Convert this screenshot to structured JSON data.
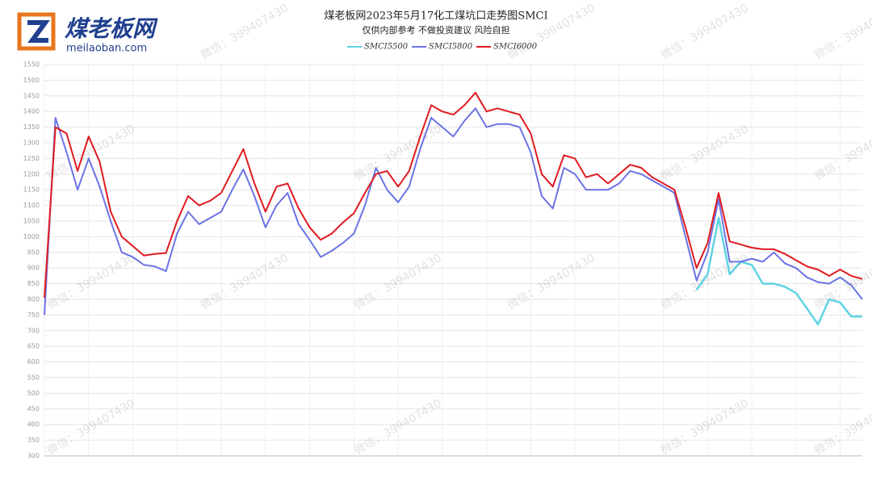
{
  "logo": {
    "name": "煤老板网",
    "url": "meilaoban.com"
  },
  "watermark": "微信：399407430",
  "chart_data": {
    "type": "line",
    "title": "煤老板网2023年5月17化工煤坑口走势图SMCI",
    "subtitle": "仅供内部参考 不做投资建议 风险自担",
    "categories": [
      null,
      null,
      null,
      null,
      null,
      null,
      null,
      null,
      null,
      null,
      null,
      null,
      null,
      null,
      null,
      null,
      null,
      null,
      null,
      null,
      null,
      null,
      null,
      null,
      null,
      null,
      null,
      null,
      null,
      null,
      null,
      null,
      null,
      null,
      null,
      null,
      null,
      null,
      null,
      null,
      null,
      null,
      null,
      null,
      null,
      null,
      null,
      null,
      null,
      null,
      null,
      null,
      null,
      null,
      null,
      null,
      null,
      null,
      null,
      null,
      null,
      null,
      null,
      null,
      null,
      null,
      null,
      null,
      null,
      null,
      null,
      null,
      null,
      null,
      null
    ],
    "series": [
      {
        "name": "SMCI5500",
        "color": "#5fd3e3",
        "values": [
          null,
          null,
          null,
          null,
          null,
          null,
          null,
          null,
          null,
          null,
          null,
          null,
          null,
          null,
          null,
          null,
          null,
          null,
          null,
          null,
          null,
          null,
          null,
          null,
          null,
          null,
          null,
          null,
          null,
          null,
          null,
          null,
          null,
          null,
          null,
          null,
          null,
          null,
          null,
          null,
          null,
          null,
          null,
          null,
          null,
          null,
          null,
          null,
          null,
          null,
          null,
          null,
          null,
          null,
          null,
          null,
          null,
          null,
          null,
          830,
          880,
          1060,
          880,
          920,
          910,
          850,
          850,
          840,
          820,
          770,
          720,
          800,
          790,
          745,
          745
        ]
      },
      {
        "name": "SMCI5800",
        "color": "#6b73e6",
        "values": [
          750,
          1380,
          1270,
          1150,
          1250,
          1160,
          1050,
          950,
          935,
          910,
          905,
          890,
          1010,
          1080,
          1040,
          1060,
          1080,
          1150,
          1215,
          1130,
          1030,
          1100,
          1140,
          1040,
          990,
          935,
          955,
          980,
          1010,
          1100,
          1220,
          1150,
          1110,
          1160,
          1280,
          1380,
          1350,
          1320,
          1370,
          1410,
          1350,
          1360,
          1360,
          1350,
          1270,
          1130,
          1090,
          1220,
          1200,
          1150,
          1150,
          1150,
          1170,
          1210,
          1200,
          1180,
          1160,
          1140,
          1000,
          860,
          950,
          1120,
          920,
          920,
          930,
          920,
          950,
          915,
          900,
          870,
          855,
          850,
          870,
          845,
          800
        ]
      },
      {
        "name": "SMCI6000",
        "color": "#e01a1f",
        "values": [
          805,
          1350,
          1330,
          1210,
          1320,
          1240,
          1080,
          1000,
          970,
          940,
          945,
          948,
          1050,
          1130,
          1100,
          1115,
          1140,
          1210,
          1280,
          1170,
          1080,
          1160,
          1170,
          1090,
          1030,
          990,
          1010,
          1045,
          1075,
          1140,
          1200,
          1210,
          1160,
          1210,
          1320,
          1420,
          1400,
          1390,
          1420,
          1460,
          1400,
          1410,
          1400,
          1390,
          1330,
          1200,
          1160,
          1260,
          1250,
          1190,
          1200,
          1170,
          1200,
          1230,
          1220,
          1190,
          1170,
          1150,
          1030,
          900,
          980,
          1140,
          985,
          975,
          965,
          960,
          960,
          945,
          925,
          905,
          895,
          875,
          895,
          875,
          865
        ]
      }
    ],
    "ylim": [
      300,
      1550
    ],
    "yticks": [
      300,
      350,
      400,
      450,
      500,
      550,
      600,
      650,
      700,
      750,
      800,
      850,
      900,
      950,
      1000,
      1050,
      1100,
      1150,
      1200,
      1250,
      1300,
      1350,
      1400,
      1450,
      1500,
      1550
    ],
    "grid": true
  }
}
